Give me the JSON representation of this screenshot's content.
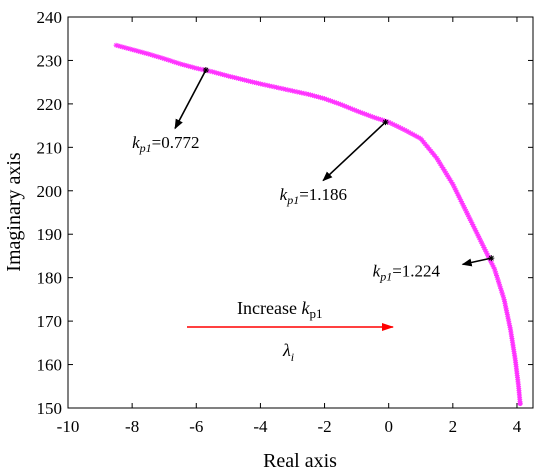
{
  "chart_data": {
    "type": "scatter",
    "xlabel": "Real axis",
    "ylabel": "Imaginary axis",
    "xlim": [
      -10,
      4.5
    ],
    "ylim": [
      150,
      240
    ],
    "xticks": [
      -10,
      -8,
      -6,
      -4,
      -2,
      0,
      2,
      4
    ],
    "yticks": [
      150,
      160,
      170,
      180,
      190,
      200,
      210,
      220,
      230,
      240
    ],
    "grid": false,
    "marker": "*",
    "series_color": "#ff33ff",
    "series": [
      {
        "points": [
          [
            -8.5,
            233.5
          ],
          [
            -8.0,
            232.5
          ],
          [
            -7.5,
            231.5
          ],
          [
            -7.0,
            230.4
          ],
          [
            -6.5,
            229.2
          ],
          [
            -6.0,
            228.2
          ],
          [
            -5.5,
            227.4
          ],
          [
            -5.0,
            226.4
          ],
          [
            -4.5,
            225.5
          ],
          [
            -4.0,
            224.6
          ],
          [
            -3.5,
            223.8
          ],
          [
            -3.0,
            223.0
          ],
          [
            -2.5,
            222.2
          ],
          [
            -2.0,
            221.2
          ],
          [
            -1.5,
            219.9
          ],
          [
            -1.0,
            218.4
          ],
          [
            -0.5,
            217.0
          ],
          [
            0.0,
            215.8
          ],
          [
            0.5,
            214.0
          ],
          [
            1.0,
            212.0
          ],
          [
            1.5,
            207.5
          ],
          [
            2.0,
            201.5
          ],
          [
            2.5,
            194.0
          ],
          [
            3.0,
            186.5
          ],
          [
            3.3,
            182.0
          ],
          [
            3.6,
            175.0
          ],
          [
            3.8,
            168.0
          ],
          [
            3.95,
            161.0
          ],
          [
            4.05,
            155.0
          ],
          [
            4.1,
            151.0
          ]
        ]
      }
    ],
    "marked_points": [
      {
        "label_prefix": "k",
        "label_sub": "p1",
        "label_value": "=0.772",
        "x": -5.7,
        "y": 227.8,
        "text_x": -8.0,
        "text_y": 209.8
      },
      {
        "label_prefix": "k",
        "label_sub": "p1",
        "label_value": "=1.186",
        "x": -0.1,
        "y": 215.8,
        "text_x": -3.4,
        "text_y": 197.9
      },
      {
        "label_prefix": "k",
        "label_sub": "p1",
        "label_value": "=1.224",
        "x": 3.2,
        "y": 184.5,
        "text_x": -0.5,
        "text_y": 180.3
      }
    ],
    "annotations": {
      "increase_label": "Increase ",
      "increase_var": "k",
      "increase_sub": "p1",
      "lambda": "λ",
      "lambda_sub": "i",
      "arrow_color": "#ff0000"
    }
  }
}
